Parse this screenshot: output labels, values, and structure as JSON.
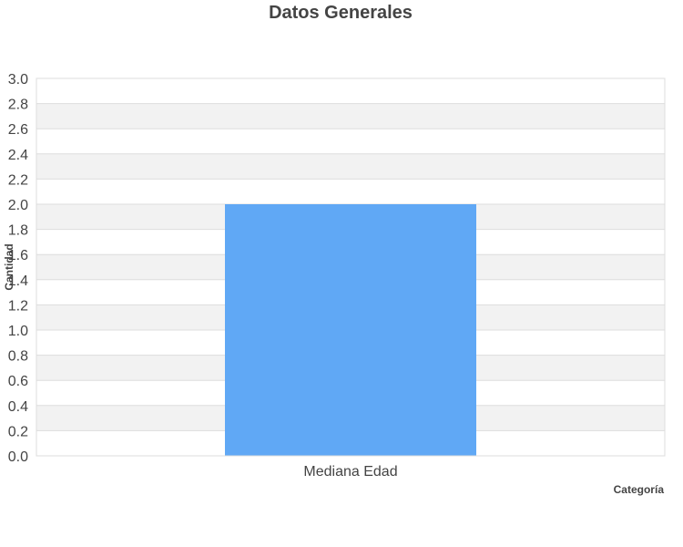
{
  "chart_data": {
    "type": "bar",
    "title": "Datos Generales",
    "xlabel": "Categoría",
    "ylabel": "Cantidad",
    "categories": [
      "Mediana Edad"
    ],
    "series": [
      {
        "values": [
          2.0
        ]
      }
    ],
    "ylim": [
      0,
      3.0
    ],
    "ytick_step": 0.2,
    "ytick_labels": [
      "0.0",
      "0.2",
      "0.4",
      "0.6",
      "0.8",
      "1.0",
      "1.2",
      "1.4",
      "1.6",
      "1.8",
      "2.0",
      "2.2",
      "2.4",
      "2.6",
      "2.8",
      "3.0"
    ],
    "grid": true,
    "legend": "none",
    "colors": {
      "bar": "#60a8f5",
      "band": "#f2f2f2",
      "grid": "#dddddd",
      "text": "#444444"
    }
  }
}
